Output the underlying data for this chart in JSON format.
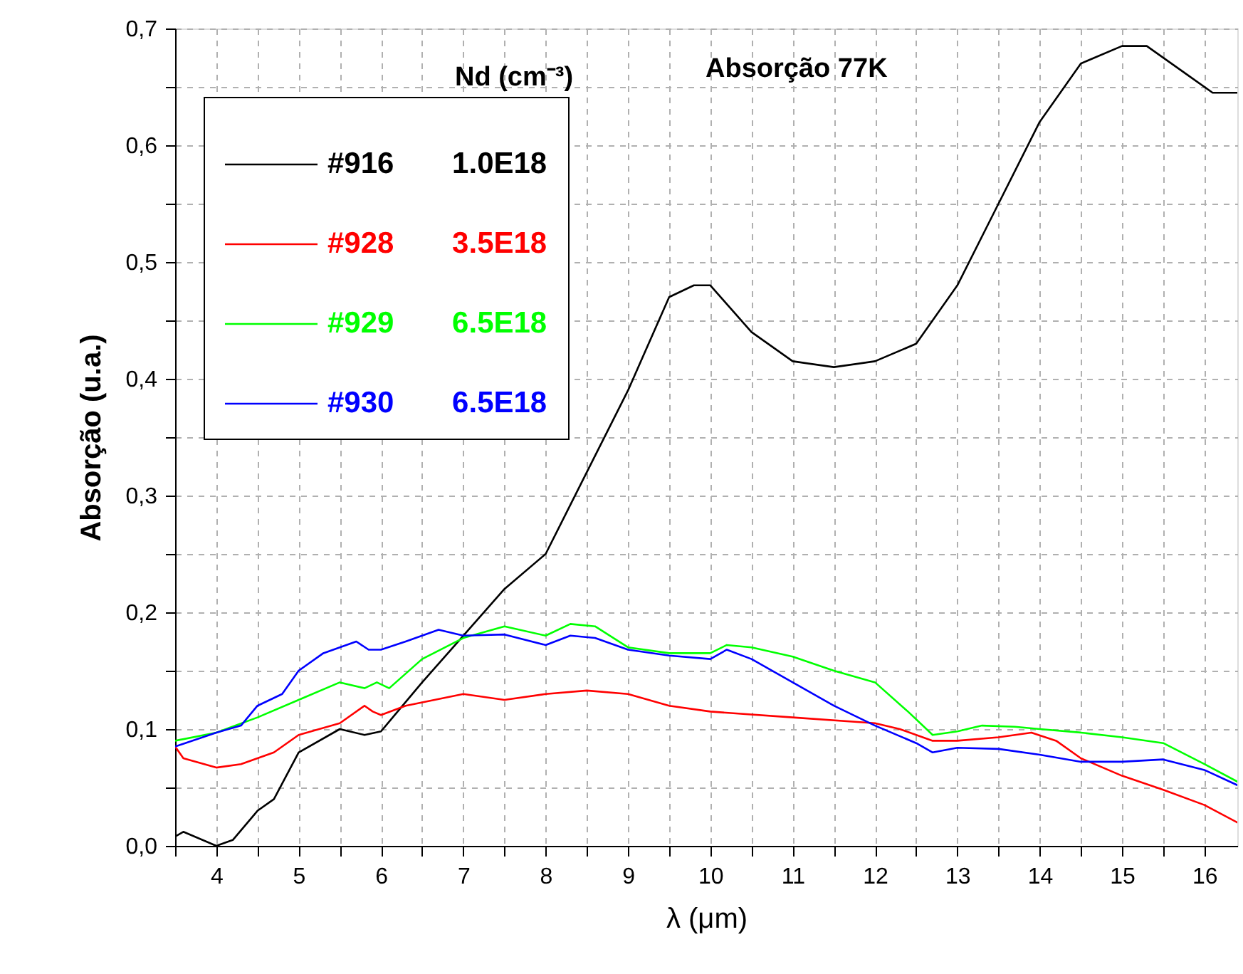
{
  "chart_data": {
    "type": "line",
    "title": "Absorção 77K",
    "xlabel": "λ (μm)",
    "ylabel": "Absorção (u.a.)",
    "legend_title": "Nd (cm⁻³)",
    "legend": "top left",
    "grid": true,
    "line_style": "solid",
    "xlim": [
      3.5,
      16.4
    ],
    "ylim": [
      0,
      0.7
    ],
    "xticks": [
      {
        "value": 3.5,
        "label": null
      },
      4,
      {
        "value": 4.5,
        "label": null
      },
      5,
      {
        "value": 5.5,
        "label": null
      },
      6,
      {
        "value": 6.5,
        "label": null
      },
      7,
      {
        "value": 7.5,
        "label": null
      },
      8,
      {
        "value": 8.5,
        "label": null
      },
      9,
      {
        "value": 9.5,
        "label": null
      },
      10,
      {
        "value": 10.5,
        "label": null
      },
      11,
      {
        "value": 11.5,
        "label": null
      },
      12,
      {
        "value": 12.5,
        "label": null
      },
      13,
      {
        "value": 13.5,
        "label": null
      },
      14,
      {
        "value": 14.5,
        "label": null
      },
      15,
      {
        "value": 15.5,
        "label": null
      },
      16
    ],
    "yticks": [
      {
        "value": 0,
        "label": "0,0"
      },
      {
        "value": 0.05,
        "label": null
      },
      {
        "value": 0.1,
        "label": "0,1"
      },
      {
        "value": 0.15,
        "label": null
      },
      {
        "value": 0.2,
        "label": "0,2"
      },
      {
        "value": 0.25,
        "label": null
      },
      {
        "value": 0.3,
        "label": "0,3"
      },
      {
        "value": 0.35,
        "label": null
      },
      {
        "value": 0.4,
        "label": "0,4"
      },
      {
        "value": 0.45,
        "label": null
      },
      {
        "value": 0.5,
        "label": "0,5"
      },
      {
        "value": 0.55,
        "label": null
      },
      {
        "value": 0.6,
        "label": "0,6"
      },
      {
        "value": 0.65,
        "label": null
      },
      {
        "value": 0.7,
        "label": "0,7"
      }
    ],
    "series": [
      {
        "name": "#916 1.0E18",
        "color": "#000000",
        "x": [
          3.5,
          3.6,
          4.0,
          4.2,
          4.5,
          4.7,
          5.0,
          5.5,
          5.8,
          6.0,
          6.5,
          7.0,
          7.5,
          8.0,
          8.5,
          9.0,
          9.5,
          9.8,
          10.0,
          10.5,
          11.0,
          11.5,
          12.0,
          12.5,
          13.0,
          13.5,
          14.0,
          14.5,
          15.0,
          15.3,
          15.8,
          16.1,
          16.4
        ],
        "values": [
          0.008,
          0.012,
          0.0,
          0.005,
          0.03,
          0.04,
          0.08,
          0.1,
          0.095,
          0.098,
          0.14,
          0.18,
          0.22,
          0.25,
          0.32,
          0.39,
          0.47,
          0.48,
          0.48,
          0.44,
          0.415,
          0.41,
          0.415,
          0.43,
          0.48,
          0.55,
          0.62,
          0.67,
          0.685,
          0.685,
          0.66,
          0.645,
          0.645
        ]
      },
      {
        "name": "#928 3.5E18",
        "color": "#ff0000",
        "x": [
          3.5,
          3.6,
          4.0,
          4.3,
          4.7,
          5.0,
          5.5,
          5.8,
          5.9,
          6.0,
          6.3,
          7.0,
          7.5,
          8.0,
          8.5,
          9.0,
          9.5,
          10.0,
          11.0,
          12.0,
          12.3,
          12.7,
          13.0,
          13.5,
          13.9,
          14.2,
          14.5,
          15.0,
          15.5,
          16.0,
          16.4
        ],
        "values": [
          0.085,
          0.075,
          0.067,
          0.07,
          0.08,
          0.095,
          0.105,
          0.12,
          0.115,
          0.112,
          0.12,
          0.13,
          0.125,
          0.13,
          0.133,
          0.13,
          0.12,
          0.115,
          0.11,
          0.105,
          0.1,
          0.09,
          0.09,
          0.093,
          0.097,
          0.09,
          0.075,
          0.06,
          0.048,
          0.035,
          0.02
        ]
      },
      {
        "name": "#929 6.5E18",
        "color": "#00ff00",
        "x": [
          3.5,
          4.0,
          4.5,
          5.0,
          5.5,
          5.8,
          5.95,
          6.1,
          6.5,
          7.0,
          7.5,
          8.0,
          8.3,
          8.6,
          9.0,
          9.5,
          10.0,
          10.2,
          10.5,
          11.0,
          11.5,
          12.0,
          12.4,
          12.7,
          13.0,
          13.3,
          13.7,
          14.0,
          14.5,
          15.0,
          15.5,
          16.0,
          16.4
        ],
        "values": [
          0.09,
          0.097,
          0.11,
          0.125,
          0.14,
          0.135,
          0.14,
          0.135,
          0.16,
          0.178,
          0.188,
          0.18,
          0.19,
          0.188,
          0.17,
          0.165,
          0.165,
          0.172,
          0.17,
          0.162,
          0.15,
          0.14,
          0.115,
          0.095,
          0.098,
          0.103,
          0.102,
          0.1,
          0.097,
          0.093,
          0.088,
          0.07,
          0.055
        ]
      },
      {
        "name": "#930 6.5E18",
        "color": "#0000ff",
        "x": [
          3.5,
          4.0,
          4.3,
          4.5,
          4.8,
          5.0,
          5.3,
          5.7,
          5.85,
          6.0,
          6.3,
          6.7,
          7.0,
          7.5,
          8.0,
          8.3,
          8.6,
          9.0,
          9.5,
          10.0,
          10.2,
          10.5,
          11.0,
          11.5,
          12.0,
          12.5,
          12.7,
          13.0,
          13.5,
          14.0,
          14.5,
          15.0,
          15.5,
          16.0,
          16.4
        ],
        "values": [
          0.085,
          0.097,
          0.103,
          0.12,
          0.13,
          0.15,
          0.165,
          0.175,
          0.168,
          0.168,
          0.175,
          0.185,
          0.18,
          0.181,
          0.172,
          0.18,
          0.178,
          0.168,
          0.163,
          0.16,
          0.168,
          0.16,
          0.14,
          0.12,
          0.103,
          0.088,
          0.08,
          0.084,
          0.083,
          0.078,
          0.072,
          0.072,
          0.074,
          0.065,
          0.052
        ]
      }
    ]
  }
}
